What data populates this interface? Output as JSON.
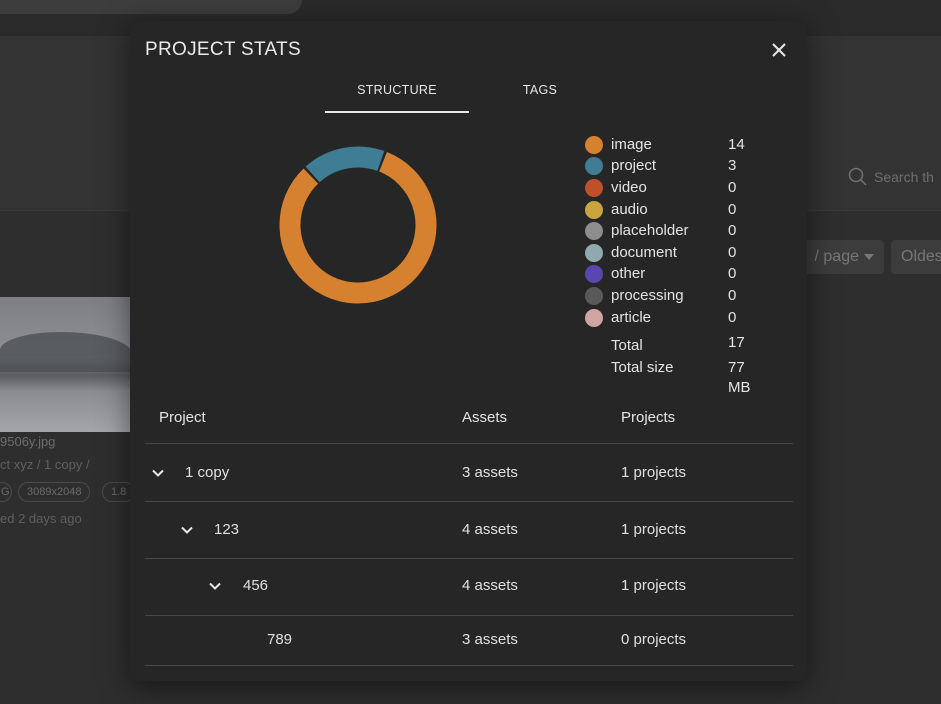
{
  "background": {
    "search_placeholder": "Search th",
    "per_page": "/ page",
    "sort": "Oldes",
    "card": {
      "filename": "9506y.jpg",
      "path": "ct xyz / 1 copy /",
      "chips": [
        "G",
        "3089x2048",
        "1.8"
      ],
      "updated": "ed 2 days ago"
    }
  },
  "modal": {
    "title": "PROJECT STATS",
    "tabs": [
      {
        "label": "STRUCTURE",
        "active": true
      },
      {
        "label": "TAGS",
        "active": false
      }
    ],
    "legend": [
      {
        "label": "image",
        "value": "14",
        "color": "#d5812f"
      },
      {
        "label": "project",
        "value": "3",
        "color": "#3e7d93"
      },
      {
        "label": "video",
        "value": "0",
        "color": "#c0502b"
      },
      {
        "label": "audio",
        "value": "0",
        "color": "#c9a53d"
      },
      {
        "label": "placeholder",
        "value": "0",
        "color": "#8d8d8d"
      },
      {
        "label": "document",
        "value": "0",
        "color": "#8fa9ae"
      },
      {
        "label": "other",
        "value": "0",
        "color": "#5b45b0"
      },
      {
        "label": "processing",
        "value": "0",
        "color": "#595959"
      },
      {
        "label": "article",
        "value": "0",
        "color": "#d1a4a4"
      }
    ],
    "totals": [
      {
        "label": "Total",
        "value": "17"
      },
      {
        "label": "Total size",
        "value": "77 MB"
      }
    ],
    "table": {
      "columns": [
        "Project",
        "Assets",
        "Projects"
      ],
      "rows": [
        {
          "name": "1 copy",
          "assets": "3 assets",
          "projects": "1 projects",
          "expandable": true,
          "depth": 0
        },
        {
          "name": "123",
          "assets": "4 assets",
          "projects": "1 projects",
          "expandable": true,
          "depth": 1
        },
        {
          "name": "456",
          "assets": "4 assets",
          "projects": "1 projects",
          "expandable": true,
          "depth": 2
        },
        {
          "name": "789",
          "assets": "3 assets",
          "projects": "0 projects",
          "expandable": false,
          "depth": 3
        }
      ]
    }
  },
  "chart_data": {
    "type": "pie",
    "categories": [
      "image",
      "project",
      "video",
      "audio",
      "placeholder",
      "document",
      "other",
      "processing",
      "article"
    ],
    "values": [
      14,
      3,
      0,
      0,
      0,
      0,
      0,
      0,
      0
    ],
    "colors": [
      "#d5812f",
      "#3e7d93",
      "#c0502b",
      "#c9a53d",
      "#8d8d8d",
      "#8fa9ae",
      "#5b45b0",
      "#595959",
      "#d1a4a4"
    ]
  }
}
